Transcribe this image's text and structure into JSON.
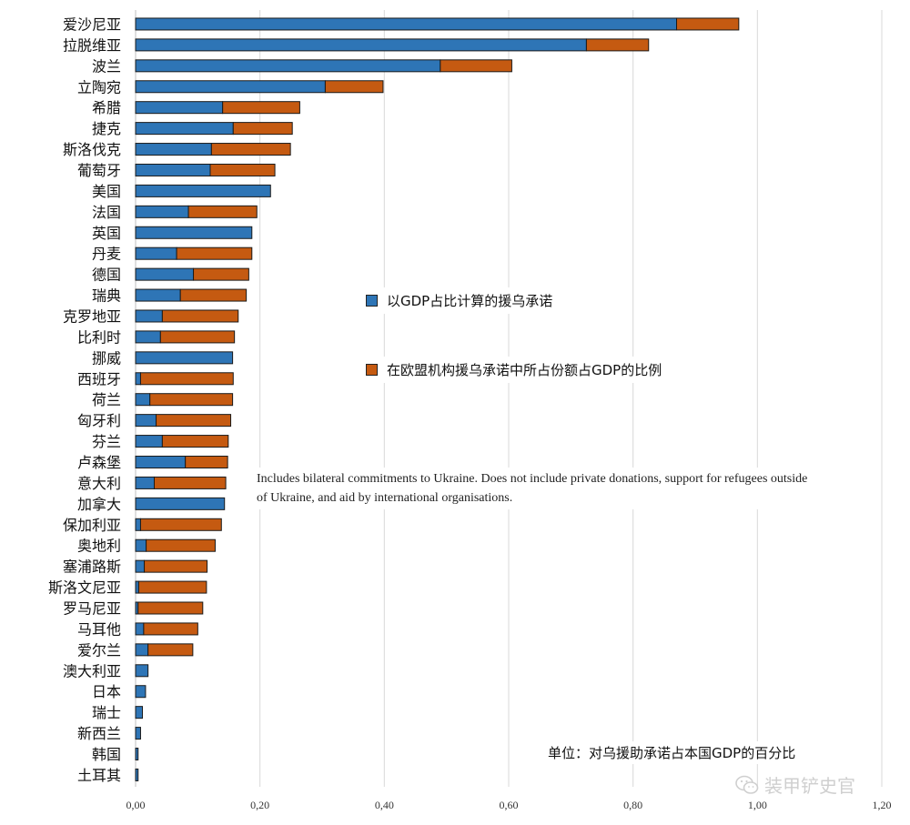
{
  "chart_data": {
    "type": "bar",
    "orientation": "horizontal",
    "stacked": true,
    "categories": [
      "爱沙尼亚",
      "拉脱维亚",
      "波兰",
      "立陶宛",
      "希腊",
      "捷克",
      "斯洛伐克",
      "葡萄牙",
      "美国",
      "法国",
      "英国",
      "丹麦",
      "德国",
      "瑞典",
      "克罗地亚",
      "比利时",
      "挪威",
      "西班牙",
      "荷兰",
      "匈牙利",
      "芬兰",
      "卢森堡",
      "意大利",
      "加拿大",
      "保加利亚",
      "奥地利",
      "塞浦路斯",
      "斯洛文尼亚",
      "罗马尼亚",
      "马耳他",
      "爱尔兰",
      "澳大利亚",
      "日本",
      "瑞士",
      "新西兰",
      "韩国",
      "土耳其"
    ],
    "series": [
      {
        "name": "以GDP占比计算的援乌承诺",
        "color": "#2e75b6",
        "values": [
          0.87,
          0.725,
          0.49,
          0.305,
          0.14,
          0.157,
          0.122,
          0.12,
          0.217,
          0.085,
          0.187,
          0.066,
          0.093,
          0.072,
          0.043,
          0.04,
          0.156,
          0.008,
          0.023,
          0.033,
          0.043,
          0.08,
          0.03,
          0.143,
          0.008,
          0.017,
          0.014,
          0.005,
          0.004,
          0.013,
          0.02,
          0.02,
          0.016,
          0.011,
          0.008,
          0.004,
          0.004
        ]
      },
      {
        "name": "在欧盟机构援乌承诺中所占份额占GDP的比例",
        "color": "#c55a11",
        "values": [
          0.1,
          0.1,
          0.115,
          0.093,
          0.124,
          0.095,
          0.127,
          0.104,
          0,
          0.11,
          0,
          0.121,
          0.089,
          0.106,
          0.122,
          0.119,
          0,
          0.149,
          0.133,
          0.12,
          0.106,
          0.068,
          0.115,
          0,
          0.13,
          0.111,
          0.101,
          0.109,
          0.104,
          0.087,
          0.072,
          0,
          0,
          0,
          0,
          0,
          0
        ]
      }
    ],
    "xlim": [
      0,
      1.2
    ],
    "xticks": [
      "0,00",
      "0,20",
      "0,40",
      "0,60",
      "0,80",
      "1,00",
      "1,20"
    ],
    "grid": true,
    "legend_position": "center-right",
    "annotation": "Includes bilateral commitments to Ukraine. Does not include private donations, support for refugees outside of Ukraine, and aid by international organisations.",
    "unit_label": "单位：对乌援助承诺占本国GDP的百分比"
  },
  "watermark": {
    "text": "装甲铲史官",
    "icon": "wechat-logo-icon"
  }
}
